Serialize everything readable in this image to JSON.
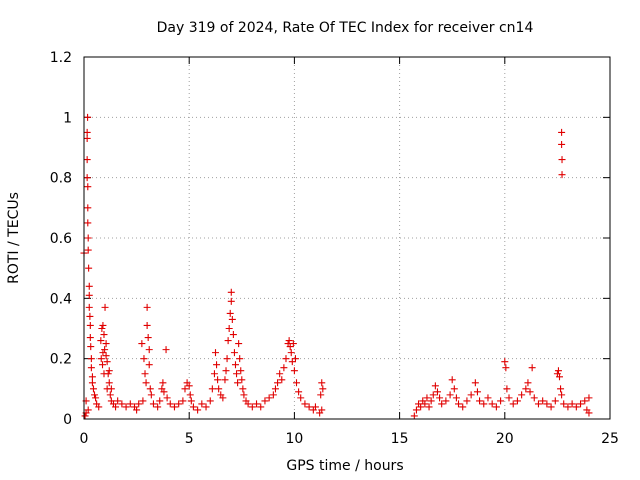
{
  "chart_data": {
    "type": "scatter",
    "title": "Day 319 of 2024, Rate Of TEC Index for receiver cn14",
    "xlabel": "GPS time / hours",
    "ylabel": "ROTI / TECUs",
    "xlim": [
      0,
      25
    ],
    "ylim": [
      0,
      1.2
    ],
    "x_ticks": [
      0,
      5,
      10,
      15,
      20,
      25
    ],
    "y_ticks": [
      0,
      0.2,
      0.4,
      0.6,
      0.8,
      1,
      1.2
    ],
    "x_tick_labels": [
      "0",
      "5",
      "10",
      "15",
      "20",
      "25"
    ],
    "y_tick_labels": [
      "0",
      "0.2",
      "0.4",
      "0.6",
      "0.8",
      "1",
      "1.2"
    ],
    "grid": true,
    "marker": "+",
    "color": "#e00000",
    "series": [
      {
        "name": "",
        "points": [
          [
            0.0,
            0.55
          ],
          [
            0.1,
            0.06
          ],
          [
            0.15,
            0.93
          ],
          [
            0.15,
            0.95
          ],
          [
            0.17,
            1.0
          ],
          [
            0.15,
            0.86
          ],
          [
            0.15,
            0.8
          ],
          [
            0.18,
            0.77
          ],
          [
            0.18,
            0.7
          ],
          [
            0.18,
            0.65
          ],
          [
            0.2,
            0.6
          ],
          [
            0.2,
            0.56
          ],
          [
            0.22,
            0.5
          ],
          [
            0.25,
            0.44
          ],
          [
            0.25,
            0.41
          ],
          [
            0.25,
            0.37
          ],
          [
            0.28,
            0.34
          ],
          [
            0.3,
            0.31
          ],
          [
            0.3,
            0.27
          ],
          [
            0.32,
            0.24
          ],
          [
            0.35,
            0.2
          ],
          [
            0.35,
            0.17
          ],
          [
            0.4,
            0.14
          ],
          [
            0.4,
            0.12
          ],
          [
            0.45,
            0.1
          ],
          [
            0.5,
            0.08
          ],
          [
            0.55,
            0.07
          ],
          [
            0.6,
            0.05
          ],
          [
            0.7,
            0.04
          ],
          [
            0.2,
            0.03
          ],
          [
            0.1,
            0.02
          ],
          [
            0.05,
            0.01
          ],
          [
            0.8,
            0.26
          ],
          [
            0.85,
            0.3
          ],
          [
            0.9,
            0.31
          ],
          [
            0.95,
            0.28
          ],
          [
            0.9,
            0.22
          ],
          [
            0.88,
            0.18
          ],
          [
            0.95,
            0.15
          ],
          [
            0.82,
            0.2
          ],
          [
            1.0,
            0.37
          ],
          [
            1.05,
            0.25
          ],
          [
            1.1,
            0.19
          ],
          [
            1.15,
            0.15
          ],
          [
            1.2,
            0.12
          ],
          [
            1.1,
            0.1
          ],
          [
            1.25,
            0.08
          ],
          [
            1.3,
            0.06
          ],
          [
            1.05,
            0.21
          ],
          [
            0.98,
            0.23
          ],
          [
            1.2,
            0.16
          ],
          [
            1.3,
            0.1
          ],
          [
            1.4,
            0.05
          ],
          [
            1.5,
            0.04
          ],
          [
            1.6,
            0.06
          ],
          [
            1.8,
            0.05
          ],
          [
            2.0,
            0.04
          ],
          [
            2.2,
            0.05
          ],
          [
            2.4,
            0.04
          ],
          [
            2.5,
            0.03
          ],
          [
            2.6,
            0.05
          ],
          [
            2.8,
            0.06
          ],
          [
            2.75,
            0.25
          ],
          [
            2.85,
            0.2
          ],
          [
            2.9,
            0.15
          ],
          [
            2.95,
            0.12
          ],
          [
            3.0,
            0.37
          ],
          [
            3.0,
            0.31
          ],
          [
            3.05,
            0.27
          ],
          [
            3.1,
            0.23
          ],
          [
            3.1,
            0.18
          ],
          [
            3.15,
            0.1
          ],
          [
            3.2,
            0.08
          ],
          [
            3.3,
            0.05
          ],
          [
            3.5,
            0.04
          ],
          [
            3.6,
            0.06
          ],
          [
            3.7,
            0.1
          ],
          [
            3.75,
            0.12
          ],
          [
            3.8,
            0.09
          ],
          [
            3.9,
            0.23
          ],
          [
            3.95,
            0.07
          ],
          [
            4.1,
            0.05
          ],
          [
            4.3,
            0.04
          ],
          [
            4.5,
            0.05
          ],
          [
            4.7,
            0.06
          ],
          [
            4.8,
            0.1
          ],
          [
            4.9,
            0.12
          ],
          [
            5.0,
            0.11
          ],
          [
            5.05,
            0.08
          ],
          [
            5.1,
            0.06
          ],
          [
            5.2,
            0.04
          ],
          [
            5.4,
            0.03
          ],
          [
            5.6,
            0.05
          ],
          [
            5.8,
            0.04
          ],
          [
            6.0,
            0.06
          ],
          [
            6.1,
            0.1
          ],
          [
            6.2,
            0.15
          ],
          [
            6.25,
            0.22
          ],
          [
            6.3,
            0.18
          ],
          [
            6.35,
            0.13
          ],
          [
            6.4,
            0.1
          ],
          [
            6.5,
            0.08
          ],
          [
            6.6,
            0.07
          ],
          [
            6.7,
            0.13
          ],
          [
            6.75,
            0.16
          ],
          [
            6.8,
            0.2
          ],
          [
            6.85,
            0.26
          ],
          [
            6.9,
            0.3
          ],
          [
            6.95,
            0.35
          ],
          [
            7.0,
            0.42
          ],
          [
            7.0,
            0.39
          ],
          [
            7.05,
            0.33
          ],
          [
            7.1,
            0.28
          ],
          [
            7.15,
            0.22
          ],
          [
            7.2,
            0.18
          ],
          [
            7.25,
            0.15
          ],
          [
            7.3,
            0.12
          ],
          [
            7.35,
            0.25
          ],
          [
            7.4,
            0.2
          ],
          [
            7.45,
            0.16
          ],
          [
            7.5,
            0.13
          ],
          [
            7.55,
            0.1
          ],
          [
            7.6,
            0.08
          ],
          [
            7.7,
            0.06
          ],
          [
            7.8,
            0.05
          ],
          [
            8.0,
            0.04
          ],
          [
            8.2,
            0.05
          ],
          [
            8.4,
            0.04
          ],
          [
            8.6,
            0.06
          ],
          [
            8.8,
            0.07
          ],
          [
            9.0,
            0.08
          ],
          [
            9.1,
            0.1
          ],
          [
            9.2,
            0.12
          ],
          [
            9.3,
            0.15
          ],
          [
            9.4,
            0.13
          ],
          [
            9.5,
            0.17
          ],
          [
            9.6,
            0.2
          ],
          [
            9.7,
            0.25
          ],
          [
            9.75,
            0.26
          ],
          [
            9.8,
            0.24
          ],
          [
            9.85,
            0.22
          ],
          [
            9.9,
            0.19
          ],
          [
            9.95,
            0.25
          ],
          [
            10.0,
            0.16
          ],
          [
            10.05,
            0.2
          ],
          [
            10.1,
            0.12
          ],
          [
            10.2,
            0.09
          ],
          [
            10.3,
            0.07
          ],
          [
            10.5,
            0.05
          ],
          [
            10.7,
            0.04
          ],
          [
            10.9,
            0.03
          ],
          [
            11.0,
            0.04
          ],
          [
            11.2,
            0.02
          ],
          [
            11.3,
            0.12
          ],
          [
            11.35,
            0.1
          ],
          [
            11.25,
            0.08
          ],
          [
            11.3,
            0.03
          ],
          [
            15.7,
            0.01
          ],
          [
            15.8,
            0.03
          ],
          [
            15.9,
            0.05
          ],
          [
            16.0,
            0.04
          ],
          [
            16.1,
            0.06
          ],
          [
            16.2,
            0.05
          ],
          [
            16.3,
            0.07
          ],
          [
            16.4,
            0.04
          ],
          [
            16.5,
            0.06
          ],
          [
            16.6,
            0.08
          ],
          [
            16.7,
            0.11
          ],
          [
            16.8,
            0.09
          ],
          [
            16.9,
            0.07
          ],
          [
            17.0,
            0.05
          ],
          [
            17.2,
            0.06
          ],
          [
            17.4,
            0.08
          ],
          [
            17.5,
            0.13
          ],
          [
            17.6,
            0.1
          ],
          [
            17.7,
            0.07
          ],
          [
            17.8,
            0.05
          ],
          [
            18.0,
            0.04
          ],
          [
            18.2,
            0.06
          ],
          [
            18.4,
            0.08
          ],
          [
            18.6,
            0.12
          ],
          [
            18.7,
            0.09
          ],
          [
            18.8,
            0.06
          ],
          [
            19.0,
            0.05
          ],
          [
            19.2,
            0.07
          ],
          [
            19.4,
            0.05
          ],
          [
            19.6,
            0.04
          ],
          [
            19.8,
            0.06
          ],
          [
            20.0,
            0.19
          ],
          [
            20.05,
            0.17
          ],
          [
            20.1,
            0.1
          ],
          [
            20.2,
            0.07
          ],
          [
            20.4,
            0.05
          ],
          [
            20.6,
            0.06
          ],
          [
            20.8,
            0.08
          ],
          [
            21.0,
            0.1
          ],
          [
            21.1,
            0.12
          ],
          [
            21.2,
            0.09
          ],
          [
            21.3,
            0.17
          ],
          [
            21.4,
            0.07
          ],
          [
            21.6,
            0.05
          ],
          [
            21.8,
            0.06
          ],
          [
            22.0,
            0.05
          ],
          [
            22.2,
            0.04
          ],
          [
            22.4,
            0.06
          ],
          [
            22.5,
            0.15
          ],
          [
            22.55,
            0.16
          ],
          [
            22.6,
            0.14
          ],
          [
            22.65,
            0.1
          ],
          [
            22.7,
            0.08
          ],
          [
            22.7,
            0.95
          ],
          [
            22.7,
            0.91
          ],
          [
            22.72,
            0.86
          ],
          [
            22.72,
            0.81
          ],
          [
            22.8,
            0.05
          ],
          [
            23.0,
            0.04
          ],
          [
            23.2,
            0.05
          ],
          [
            23.4,
            0.04
          ],
          [
            23.6,
            0.05
          ],
          [
            23.8,
            0.06
          ],
          [
            24.0,
            0.07
          ],
          [
            23.9,
            0.03
          ],
          [
            24.0,
            0.02
          ]
        ]
      }
    ]
  }
}
